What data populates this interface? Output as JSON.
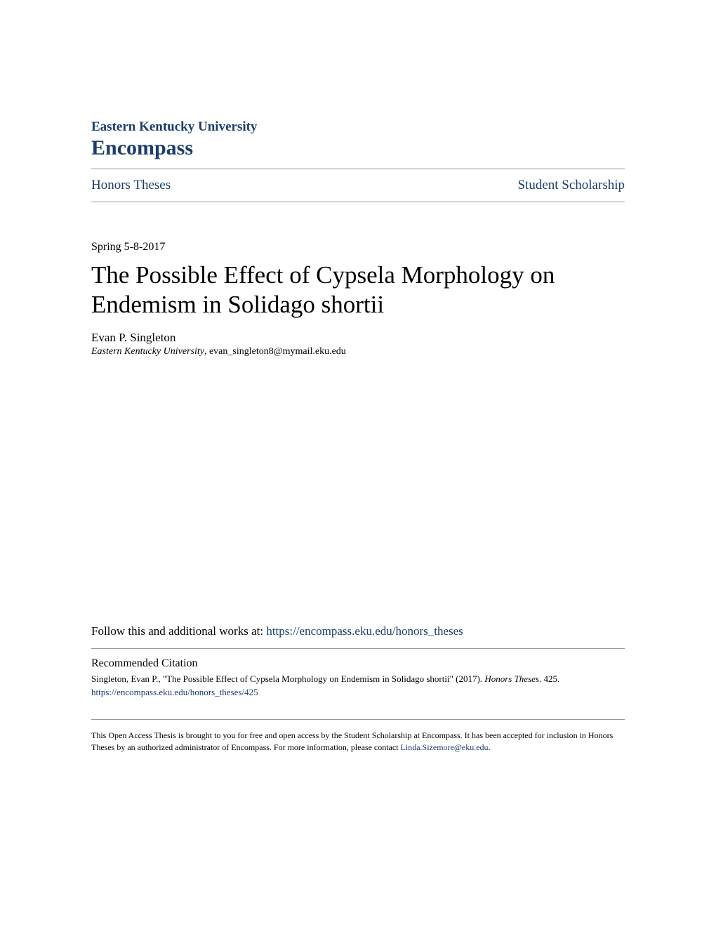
{
  "header": {
    "university": "Eastern Kentucky University",
    "repository": "Encompass"
  },
  "nav": {
    "left": "Honors Theses",
    "right": "Student Scholarship"
  },
  "date": "Spring 5-8-2017",
  "title": "The Possible Effect of Cypsela Morphology on Endemism in Solidago shortii",
  "author": {
    "name": "Evan P. Singleton",
    "affiliation": "Eastern Kentucky University",
    "email": ", evan_singleton8@mymail.eku.edu"
  },
  "follow": {
    "prefix": "Follow this and additional works at: ",
    "link": "https://encompass.eku.edu/honors_theses"
  },
  "citation": {
    "heading": "Recommended Citation",
    "text_part1": "Singleton, Evan P., \"The Possible Effect of Cypsela Morphology on Endemism in Solidago shortii\" (2017). ",
    "text_italic": "Honors Theses",
    "text_part2": ". 425.",
    "link": "https://encompass.eku.edu/honors_theses/425"
  },
  "footer": {
    "text_part1": "This Open Access Thesis is brought to you for free and open access by the Student Scholarship at Encompass. It has been accepted for inclusion in Honors Theses by an authorized administrator of Encompass. For more information, please contact ",
    "link": "Linda.Sizemore@eku.edu",
    "text_part2": "."
  }
}
